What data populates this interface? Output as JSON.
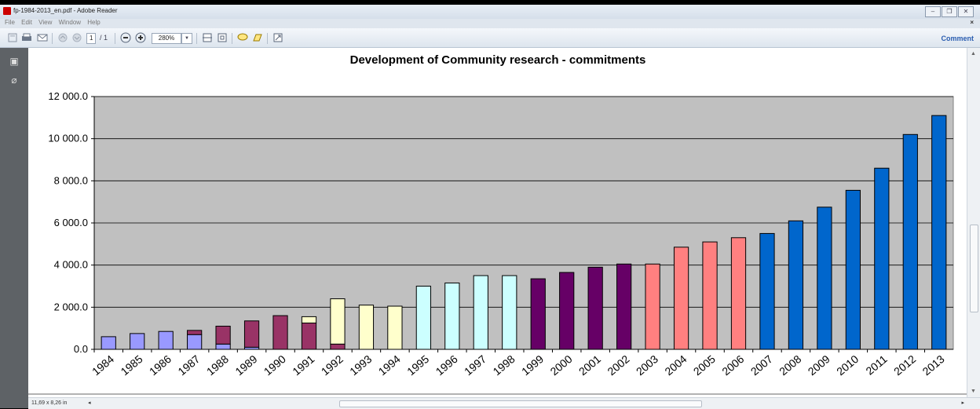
{
  "window": {
    "title": "fp-1984-2013_en.pdf - Adobe Reader"
  },
  "menu": {
    "items": [
      "File",
      "Edit",
      "View",
      "Window",
      "Help"
    ]
  },
  "toolbar": {
    "page_current": "1",
    "page_total": "/ 1",
    "zoom": "280%",
    "comment_label": "Comment"
  },
  "status": {
    "page_size": "11,69 x 8,26 in"
  },
  "colors": {
    "lavender": "#9999ff",
    "maroon": "#993366",
    "cream": "#ffffcc",
    "cyan": "#ccffff",
    "purple": "#660066",
    "salmon": "#ff8080",
    "blue": "#0066cc",
    "plot_bg": "#c0c0c0"
  },
  "chart_data": {
    "type": "bar",
    "title": "Development of Community research - commitments",
    "xlabel": "",
    "ylabel": "",
    "ylim": [
      0,
      12000
    ],
    "ytick_labels": [
      "0.0",
      "2 000.0",
      "4 000.0",
      "6 000.0",
      "8 000.0",
      "10 000.0",
      "12 000.0"
    ],
    "ytick_values": [
      0,
      2000,
      4000,
      6000,
      8000,
      10000,
      12000
    ],
    "grid": true,
    "stacked": true,
    "categories": [
      "1984",
      "1985",
      "1986",
      "1987",
      "1988",
      "1989",
      "1990",
      "1991",
      "1992",
      "1993",
      "1994",
      "1995",
      "1996",
      "1997",
      "1998",
      "1999",
      "2000",
      "2001",
      "2002",
      "2003",
      "2004",
      "2005",
      "2006",
      "2007",
      "2008",
      "2009",
      "2010",
      "2011",
      "2012",
      "2013"
    ],
    "series": [
      {
        "color": "#9999ff",
        "values": [
          600,
          750,
          850,
          700,
          250,
          100,
          0,
          0,
          0,
          0,
          0,
          0,
          0,
          0,
          0,
          0,
          0,
          0,
          0,
          0,
          0,
          0,
          0,
          0,
          0,
          0,
          0,
          0,
          0,
          0
        ]
      },
      {
        "color": "#993366",
        "values": [
          0,
          0,
          0,
          200,
          850,
          1250,
          1600,
          1250,
          250,
          0,
          0,
          0,
          0,
          0,
          0,
          0,
          0,
          0,
          0,
          0,
          0,
          0,
          0,
          0,
          0,
          0,
          0,
          0,
          0,
          0
        ]
      },
      {
        "color": "#ffffcc",
        "values": [
          0,
          0,
          0,
          0,
          0,
          0,
          0,
          300,
          2150,
          2100,
          2050,
          0,
          0,
          0,
          0,
          0,
          0,
          0,
          0,
          0,
          0,
          0,
          0,
          0,
          0,
          0,
          0,
          0,
          0,
          0
        ]
      },
      {
        "color": "#ccffff",
        "values": [
          0,
          0,
          0,
          0,
          0,
          0,
          0,
          0,
          0,
          0,
          0,
          3000,
          3150,
          3500,
          3500,
          0,
          0,
          0,
          0,
          0,
          0,
          0,
          0,
          0,
          0,
          0,
          0,
          0,
          0,
          0
        ]
      },
      {
        "color": "#660066",
        "values": [
          0,
          0,
          0,
          0,
          0,
          0,
          0,
          0,
          0,
          0,
          0,
          0,
          0,
          0,
          0,
          3350,
          3650,
          3900,
          4050,
          0,
          0,
          0,
          0,
          0,
          0,
          0,
          0,
          0,
          0,
          0
        ]
      },
      {
        "color": "#ff8080",
        "values": [
          0,
          0,
          0,
          0,
          0,
          0,
          0,
          0,
          0,
          0,
          0,
          0,
          0,
          0,
          0,
          0,
          0,
          0,
          0,
          4050,
          4850,
          5100,
          5300,
          0,
          0,
          0,
          0,
          0,
          0,
          0
        ]
      },
      {
        "color": "#0066cc",
        "values": [
          0,
          0,
          0,
          0,
          0,
          0,
          0,
          0,
          0,
          0,
          0,
          0,
          0,
          0,
          0,
          0,
          0,
          0,
          0,
          0,
          0,
          0,
          0,
          5500,
          6100,
          6750,
          7550,
          8600,
          10200,
          11100
        ]
      }
    ]
  }
}
